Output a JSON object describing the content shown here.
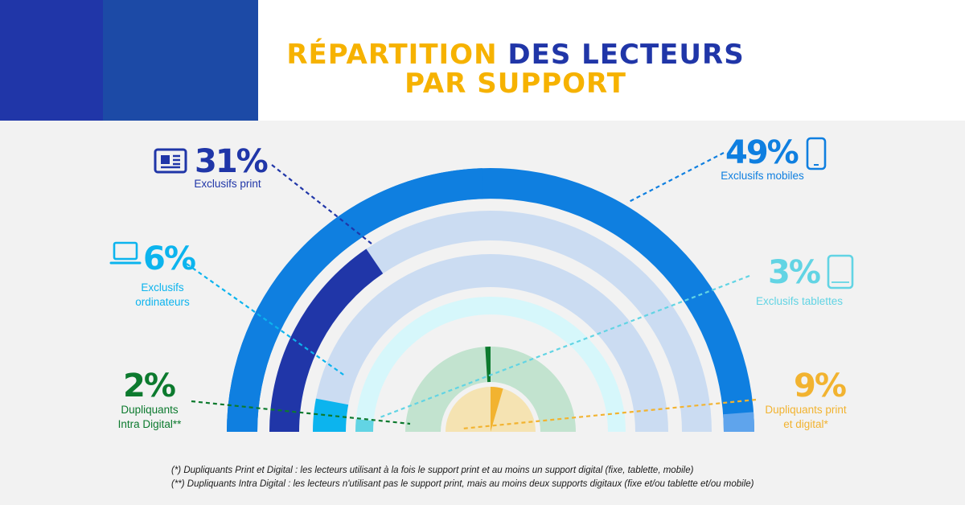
{
  "title": {
    "part1": "RÉPARTITION",
    "part2": "DES LECTEURS",
    "line2": "PAR SUPPORT"
  },
  "colors": {
    "print": "#2036a8",
    "mobile": "#0f7fe0",
    "ordinateurs": "#0cb4ee",
    "tablettes": "#62d4e4",
    "intra_digital": "#0c7a2e",
    "print_digital": "#f2b330",
    "header_yellow": "#f6b200"
  },
  "chart_data": {
    "type": "pie",
    "layout": "concentric semicircle rings",
    "unit": "%",
    "slices": [
      {
        "key": "mobile",
        "value": 49,
        "label": "49%",
        "name": "Exclusifs mobiles",
        "icon": "smartphone-icon"
      },
      {
        "key": "print",
        "value": 31,
        "label": "31%",
        "name": "Exclusifs print",
        "icon": "newspaper-icon"
      },
      {
        "key": "ordinateurs",
        "value": 6,
        "label": "6%",
        "name": "Exclusifs ordinateurs",
        "icon": "laptop-icon"
      },
      {
        "key": "tablettes",
        "value": 3,
        "label": "3%",
        "name": "Exclusifs tablettes",
        "icon": "tablet-icon"
      },
      {
        "key": "intra_digital",
        "value": 2,
        "label": "2%",
        "name": "Dupliquants Intra Digital**",
        "icon": ""
      },
      {
        "key": "print_digital",
        "value": 9,
        "label": "9%",
        "name": "Dupliquants print et digital*",
        "icon": ""
      }
    ]
  },
  "callouts": {
    "print": {
      "pct": "31%",
      "lines": [
        "Exclusifs print"
      ]
    },
    "mobile": {
      "pct": "49%",
      "lines": [
        "Exclusifs mobiles"
      ]
    },
    "ordinateurs": {
      "pct": "6%",
      "lines": [
        "Exclusifs",
        "ordinateurs"
      ]
    },
    "tablettes": {
      "pct": "3%",
      "lines": [
        "Exclusifs tablettes"
      ]
    },
    "intra_digital": {
      "pct": "2%",
      "lines": [
        "Dupliquants",
        "Intra Digital**"
      ]
    },
    "print_digital": {
      "pct": "9%",
      "lines": [
        "Dupliquants print",
        "et digital*"
      ]
    }
  },
  "footnotes": [
    "(*) Dupliquants Print et Digital : les lecteurs utilisant à la fois le support print et au moins un support digital (fixe, tablette, mobile)",
    "(**) Dupliquants Intra Digital : les lecteurs n'utilisant pas le support print, mais au moins deux supports digitaux (fixe et/ou tablette et/ou mobile)"
  ]
}
